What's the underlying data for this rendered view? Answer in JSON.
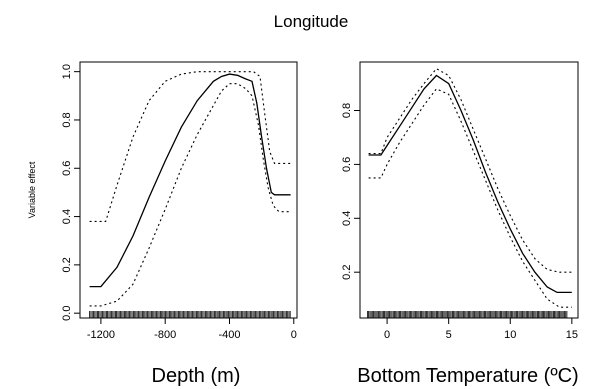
{
  "figure_title": "Longitude",
  "chart_data": [
    {
      "type": "line",
      "xlabel": "Depth (m)",
      "ylabel": "Variable effect",
      "xlim": [
        -1330,
        20
      ],
      "ylim": [
        -0.02,
        1.04
      ],
      "xticks": [
        -1200,
        -800,
        -400,
        0
      ],
      "yticks": [
        0.0,
        0.2,
        0.4,
        0.6,
        0.8,
        1.0
      ],
      "grid": false,
      "series": [
        {
          "role": "estimate",
          "style": "solid",
          "x": [
            -1270,
            -1200,
            -1100,
            -1000,
            -900,
            -800,
            -700,
            -600,
            -500,
            -450,
            -400,
            -350,
            -300,
            -260,
            -230,
            -200,
            -170,
            -140,
            -120,
            -100,
            -60,
            -20
          ],
          "y": [
            0.11,
            0.11,
            0.19,
            0.32,
            0.48,
            0.63,
            0.77,
            0.88,
            0.96,
            0.98,
            0.99,
            0.985,
            0.97,
            0.96,
            0.87,
            0.73,
            0.6,
            0.5,
            0.49,
            0.49,
            0.49,
            0.49
          ]
        },
        {
          "role": "upper",
          "style": "dotted",
          "x": [
            -1270,
            -1170,
            -1100,
            -1000,
            -900,
            -800,
            -700,
            -600,
            -550,
            -500,
            -400,
            -300,
            -250,
            -210,
            -180,
            -150,
            -120,
            -100,
            -60,
            -20
          ],
          "y": [
            0.38,
            0.38,
            0.53,
            0.73,
            0.88,
            0.96,
            0.99,
            1.0,
            1.0,
            1.0,
            1.0,
            1.0,
            1.0,
            0.98,
            0.82,
            0.67,
            0.62,
            0.62,
            0.62,
            0.62
          ]
        },
        {
          "role": "lower",
          "style": "dotted",
          "x": [
            -1270,
            -1200,
            -1100,
            -1000,
            -900,
            -800,
            -700,
            -600,
            -500,
            -450,
            -400,
            -350,
            -300,
            -260,
            -220,
            -190,
            -160,
            -130,
            -110,
            -90,
            -60,
            -20
          ],
          "y": [
            0.03,
            0.03,
            0.05,
            0.12,
            0.27,
            0.43,
            0.6,
            0.74,
            0.86,
            0.92,
            0.95,
            0.95,
            0.93,
            0.9,
            0.78,
            0.64,
            0.52,
            0.45,
            0.43,
            0.42,
            0.42,
            0.42
          ]
        }
      ],
      "rug": {
        "from": -1270,
        "to": -20,
        "step": 8
      }
    },
    {
      "type": "line",
      "xlabel": "Bottom Temperature (ºC)",
      "ylabel": "",
      "xlim": [
        -2.2,
        15.5
      ],
      "ylim": [
        0.03,
        0.98
      ],
      "xticks": [
        0,
        5,
        10,
        15
      ],
      "yticks": [
        0.2,
        0.4,
        0.6,
        0.8
      ],
      "grid": false,
      "series": [
        {
          "role": "estimate",
          "style": "solid",
          "x": [
            -1.5,
            -0.5,
            0,
            1,
            2,
            3,
            4,
            5,
            6,
            7,
            8,
            9,
            10,
            11,
            12,
            13,
            13.8,
            15
          ],
          "y": [
            0.635,
            0.635,
            0.67,
            0.74,
            0.81,
            0.88,
            0.93,
            0.9,
            0.8,
            0.69,
            0.57,
            0.46,
            0.36,
            0.27,
            0.2,
            0.145,
            0.125,
            0.125
          ]
        },
        {
          "role": "upper",
          "style": "dotted",
          "x": [
            -1.5,
            -0.5,
            0,
            1,
            2,
            3,
            4,
            5,
            6,
            7,
            8,
            9,
            10,
            11,
            12,
            13,
            14,
            15
          ],
          "y": [
            0.64,
            0.64,
            0.7,
            0.77,
            0.84,
            0.9,
            0.955,
            0.93,
            0.84,
            0.73,
            0.62,
            0.51,
            0.41,
            0.32,
            0.25,
            0.21,
            0.2,
            0.2
          ]
        },
        {
          "role": "lower",
          "style": "dotted",
          "x": [
            -1.5,
            -0.5,
            0,
            1,
            2,
            3,
            4,
            5,
            6,
            7,
            8,
            9,
            10,
            11,
            12,
            13,
            14,
            15
          ],
          "y": [
            0.55,
            0.55,
            0.6,
            0.68,
            0.75,
            0.82,
            0.88,
            0.86,
            0.76,
            0.65,
            0.54,
            0.43,
            0.33,
            0.24,
            0.17,
            0.1,
            0.07,
            0.07
          ]
        }
      ],
      "rug": {
        "from": -1.6,
        "to": 14.6,
        "step": 0.1
      }
    }
  ]
}
